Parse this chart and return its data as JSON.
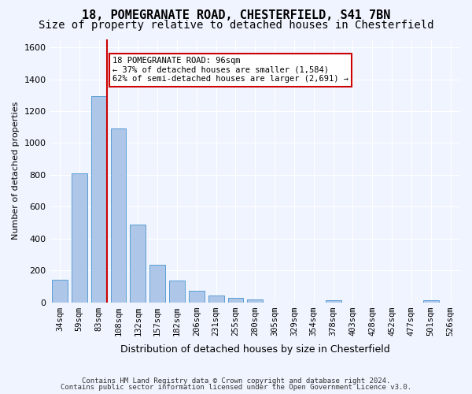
{
  "title1": "18, POMEGRANATE ROAD, CHESTERFIELD, S41 7BN",
  "title2": "Size of property relative to detached houses in Chesterfield",
  "xlabel": "Distribution of detached houses by size in Chesterfield",
  "ylabel": "Number of detached properties",
  "categories": [
    "34sqm",
    "59sqm",
    "83sqm",
    "108sqm",
    "132sqm",
    "157sqm",
    "182sqm",
    "206sqm",
    "231sqm",
    "255sqm",
    "280sqm",
    "305sqm",
    "329sqm",
    "354sqm",
    "378sqm",
    "403sqm",
    "428sqm",
    "452sqm",
    "477sqm",
    "501sqm",
    "526sqm"
  ],
  "values": [
    140,
    810,
    1295,
    1090,
    485,
    235,
    135,
    70,
    42,
    27,
    15,
    0,
    0,
    0,
    13,
    0,
    0,
    0,
    0,
    13,
    0
  ],
  "bar_color": "#aec6e8",
  "bar_edge_color": "#5a9fd4",
  "vline_x": 2,
  "vline_color": "#cc0000",
  "annotation_text": "18 POMEGRANATE ROAD: 96sqm\n← 37% of detached houses are smaller (1,584)\n62% of semi-detached houses are larger (2,691) →",
  "annotation_box_color": "#cc0000",
  "ylim": [
    0,
    1650
  ],
  "yticks": [
    0,
    200,
    400,
    600,
    800,
    1000,
    1200,
    1400,
    1600
  ],
  "footer1": "Contains HM Land Registry data © Crown copyright and database right 2024.",
  "footer2": "Contains public sector information licensed under the Open Government Licence v3.0.",
  "bg_color": "#f0f4ff",
  "grid_color": "#ffffff",
  "title1_fontsize": 11,
  "title2_fontsize": 10
}
